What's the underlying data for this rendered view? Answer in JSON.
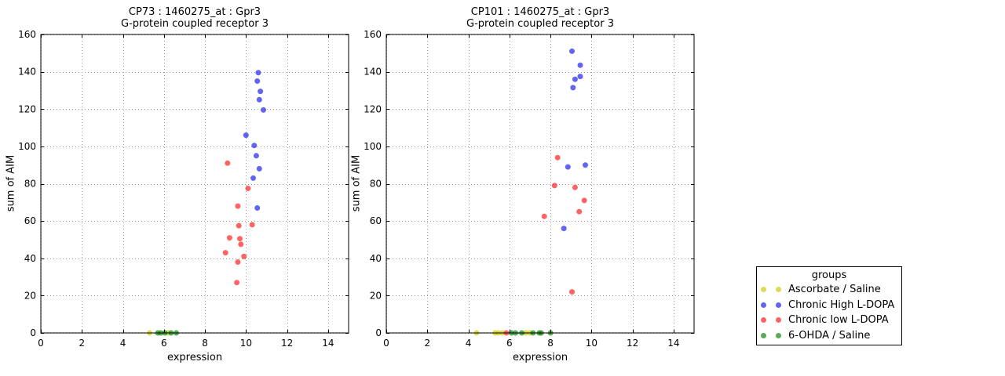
{
  "legend": {
    "title": "groups",
    "entries": [
      {
        "label": "Ascorbate / Saline",
        "color": "#cccc11"
      },
      {
        "label": "Chronic High L-DOPA",
        "color": "#2222ee"
      },
      {
        "label": "Chronic low L-DOPA",
        "color": "#ff2222"
      },
      {
        "label": "6-OHDA / Saline",
        "color": "#118811"
      }
    ]
  },
  "chart_data": [
    {
      "type": "scatter",
      "title": "CP73 : 1460275_at : Gpr3",
      "subtitle": "G-protein coupled receptor 3",
      "xlabel": "expression",
      "ylabel": "sum of AIM",
      "xlim": [
        0,
        15
      ],
      "ylim": [
        0,
        160
      ],
      "xticks": [
        0,
        2,
        4,
        6,
        8,
        10,
        12,
        14
      ],
      "yticks": [
        0,
        20,
        40,
        60,
        80,
        100,
        120,
        140,
        160
      ],
      "grid": true,
      "marker_alpha": 0.7,
      "series": [
        {
          "name": "Ascorbate / Saline",
          "color": "#cccc11",
          "points": [
            [
              5.3,
              0
            ],
            [
              6.2,
              0
            ]
          ]
        },
        {
          "name": "Chronic High L-DOPA",
          "color": "#2222ee",
          "points": [
            [
              10.6,
              139.5
            ],
            [
              10.55,
              135
            ],
            [
              10.7,
              129.5
            ],
            [
              10.65,
              125
            ],
            [
              10.85,
              119.5
            ],
            [
              10.0,
              106
            ],
            [
              10.4,
              100.5
            ],
            [
              10.5,
              95
            ],
            [
              10.65,
              88
            ],
            [
              10.35,
              83
            ],
            [
              10.55,
              67
            ]
          ]
        },
        {
          "name": "Chronic low L-DOPA",
          "color": "#ff2222",
          "points": [
            [
              9.1,
              91
            ],
            [
              10.1,
              77.5
            ],
            [
              9.6,
              68
            ],
            [
              10.3,
              58
            ],
            [
              9.65,
              57.5
            ],
            [
              9.2,
              51
            ],
            [
              9.7,
              50.5
            ],
            [
              9.75,
              47.5
            ],
            [
              9.0,
              43
            ],
            [
              9.9,
              41
            ],
            [
              9.6,
              38
            ],
            [
              9.55,
              27
            ]
          ]
        },
        {
          "name": "6-OHDA / Saline",
          "color": "#118811",
          "points": [
            [
              5.7,
              0
            ],
            [
              5.85,
              0
            ],
            [
              6.05,
              0
            ],
            [
              6.35,
              0
            ],
            [
              6.6,
              0
            ]
          ]
        }
      ]
    },
    {
      "type": "scatter",
      "title": "CP101 : 1460275_at : Gpr3",
      "subtitle": "G-protein coupled receptor 3",
      "xlabel": "expression",
      "ylabel": "sum of AIM",
      "xlim": [
        0,
        15
      ],
      "ylim": [
        0,
        160
      ],
      "xticks": [
        0,
        2,
        4,
        6,
        8,
        10,
        12,
        14
      ],
      "yticks": [
        0,
        20,
        40,
        60,
        80,
        100,
        120,
        140,
        160
      ],
      "grid": true,
      "marker_alpha": 0.7,
      "series": [
        {
          "name": "Ascorbate / Saline",
          "color": "#cccc11",
          "points": [
            [
              4.4,
              0
            ],
            [
              5.3,
              0
            ],
            [
              5.45,
              0
            ],
            [
              5.65,
              0
            ],
            [
              6.8,
              0
            ],
            [
              7.0,
              0
            ]
          ]
        },
        {
          "name": "Chronic High L-DOPA",
          "color": "#2222ee",
          "points": [
            [
              9.05,
              151
            ],
            [
              9.45,
              143.5
            ],
            [
              9.45,
              137.5
            ],
            [
              9.2,
              136
            ],
            [
              9.1,
              131.5
            ],
            [
              9.7,
              90
            ],
            [
              8.85,
              89
            ],
            [
              8.65,
              56
            ]
          ]
        },
        {
          "name": "Chronic low L-DOPA",
          "color": "#ff2222",
          "points": [
            [
              8.35,
              94
            ],
            [
              8.2,
              79
            ],
            [
              9.2,
              78
            ],
            [
              9.65,
              71
            ],
            [
              9.4,
              65
            ],
            [
              7.7,
              62.5
            ],
            [
              9.05,
              22
            ],
            [
              5.85,
              0
            ]
          ]
        },
        {
          "name": "6-OHDA / Saline",
          "color": "#118811",
          "points": [
            [
              6.1,
              0
            ],
            [
              6.3,
              0
            ],
            [
              6.6,
              0
            ],
            [
              7.15,
              0
            ],
            [
              7.45,
              0
            ],
            [
              7.55,
              0
            ],
            [
              8.0,
              0
            ]
          ]
        }
      ]
    }
  ]
}
